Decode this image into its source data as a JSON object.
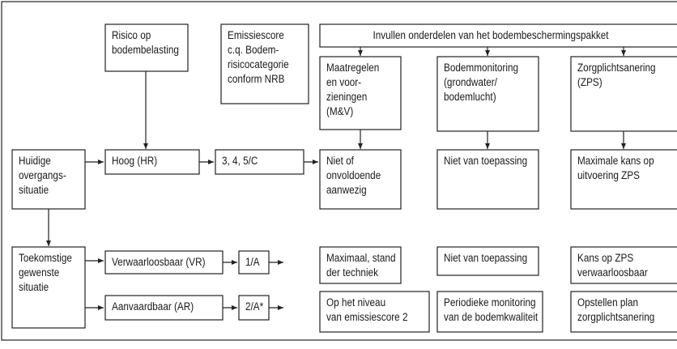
{
  "nodes": [
    {
      "lines": [
        "Risico op",
        "bodembelasting"
      ]
    },
    {
      "lines": [
        "Emissiescore",
        "c.q. Bodem-",
        "risicocategorie",
        "conform NRB"
      ]
    },
    {
      "lines": [
        "Invullen onderdelen van het bodembeschermingspakket"
      ]
    },
    {
      "lines": [
        "Maatregelen",
        "en voor-",
        "zieningen",
        "(M&V)"
      ]
    },
    {
      "lines": [
        "Bodemmonitoring",
        "(grondwater/",
        "bodemlucht)"
      ]
    },
    {
      "lines": [
        "Zorgplichtsanering",
        "(ZPS)"
      ]
    },
    {
      "lines": [
        "Huidige",
        "overgangs-",
        "situatie"
      ]
    },
    {
      "lines": [
        "Hoog (HR)"
      ]
    },
    {
      "lines": [
        "3, 4, 5/C"
      ]
    },
    {
      "lines": [
        "Niet of",
        "onvoldoende",
        "aanwezig"
      ]
    },
    {
      "lines": [
        "Niet van toepassing"
      ]
    },
    {
      "lines": [
        "Maximale kans op",
        "uitvoering ZPS"
      ]
    },
    {
      "lines": [
        "Toekomstige",
        "gewenste",
        "situatie"
      ]
    },
    {
      "lines": [
        "Verwaarloosbaar (VR)"
      ]
    },
    {
      "lines": [
        "1/A"
      ]
    },
    {
      "lines": [
        "Maximaal, stand",
        "der techniek"
      ]
    },
    {
      "lines": [
        "Niet van toepassing"
      ]
    },
    {
      "lines": [
        "Kans op ZPS",
        "verwaarloosbaar"
      ]
    },
    {
      "lines": [
        "Aanvaardbaar (AR)"
      ]
    },
    {
      "lines": [
        "2/A*"
      ]
    },
    {
      "lines": [
        "Op het niveau",
        "van emissiescore 2"
      ]
    },
    {
      "lines": [
        "Periodieke monitoring",
        "van de bodemkwaliteit"
      ]
    },
    {
      "lines": [
        "Opstellen plan",
        "zorgplichtsanering"
      ]
    }
  ]
}
